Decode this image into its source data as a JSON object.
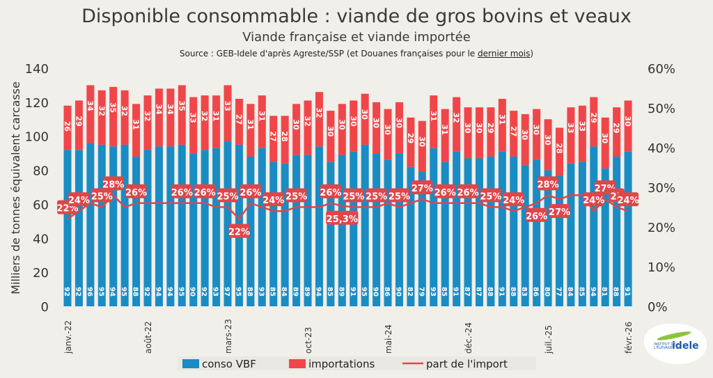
{
  "title": "Disponible consommable : viande de gros bovins et veaux",
  "subtitle": "Viande française et viande importée",
  "source_prefix": "Source : GEB-Idele d'après Agreste/SSP (et Douanes françaises pour le ",
  "source_link": "dernier mois",
  "source_suffix": ")",
  "logo": {
    "line1": "INSTITUT DE",
    "line2": "L'ÉLEVAGE",
    "brand": "idele"
  },
  "chart_data": {
    "type": "bar",
    "stacked": true,
    "title": "Disponible consommable : viande de gros bovins et veaux",
    "ylabel": "Milliers de tonnes équivalent carcasse",
    "ylim": [
      0,
      140
    ],
    "yticks": [
      "0",
      "20",
      "40",
      "60",
      "80",
      "100",
      "120",
      "140"
    ],
    "y2lim": [
      0,
      60
    ],
    "y2ticks": [
      "0%",
      "10%",
      "20%",
      "30%",
      "40%",
      "50%",
      "60%"
    ],
    "grid": false,
    "legend_position": "bottom",
    "colors": {
      "conso": "#1a8cc4",
      "imports": "#f0464a",
      "share": "#e0454a"
    },
    "xtick_labels": [
      {
        "index": 0,
        "label": "janv.-22"
      },
      {
        "index": 7,
        "label": "août-22"
      },
      {
        "index": 14,
        "label": "mars-23"
      },
      {
        "index": 21,
        "label": "oct-23"
      },
      {
        "index": 28,
        "label": "mai-24"
      },
      {
        "index": 35,
        "label": "déc.-24"
      },
      {
        "index": 42,
        "label": "juil.-25"
      },
      {
        "index": 49,
        "label": "févr.-26"
      }
    ],
    "series": [
      {
        "name": "conso VBF",
        "type": "bar",
        "values": [
          92,
          92,
          96,
          95,
          94,
          95,
          88,
          92,
          94,
          94,
          95,
          90,
          92,
          93,
          97,
          95,
          88,
          93,
          85,
          84,
          89,
          89,
          94,
          85,
          89,
          91,
          95,
          90,
          86,
          90,
          82,
          79,
          93,
          85,
          91,
          87,
          87,
          88,
          91,
          88,
          83,
          86,
          80,
          77,
          84,
          85,
          94,
          81,
          88,
          91
        ]
      },
      {
        "name": "importations",
        "type": "bar",
        "values": [
          26,
          29,
          34,
          32,
          35,
          32,
          31,
          32,
          34,
          34,
          35,
          33,
          32,
          31,
          33,
          27,
          31,
          31,
          27,
          28,
          30,
          32,
          32,
          30,
          30,
          30,
          30,
          30,
          30,
          30,
          29,
          30,
          31,
          31,
          32,
          30,
          30,
          29,
          31,
          27,
          30,
          30,
          30,
          28,
          33,
          33,
          29,
          30,
          29,
          30
        ]
      },
      {
        "name": "part de l'import",
        "type": "line",
        "axis": "right",
        "values": [
          22,
          24,
          26,
          25,
          28,
          25,
          26,
          26,
          26,
          26,
          26,
          26,
          26,
          25,
          25,
          22,
          26,
          25,
          24,
          24,
          25,
          25,
          25,
          26,
          25.3,
          25,
          25,
          25,
          26,
          25,
          26,
          27,
          26,
          26,
          26,
          26,
          26,
          25,
          25,
          24,
          25,
          26,
          28,
          27,
          28,
          28,
          24,
          27,
          25,
          24
        ]
      }
    ],
    "share_labels": [
      "22%",
      "24%",
      null,
      "25%",
      "28%",
      null,
      "26%",
      null,
      null,
      null,
      "26%",
      null,
      "26%",
      null,
      "25%",
      "22%",
      "26%",
      null,
      "24%",
      null,
      "25%",
      null,
      null,
      "26%",
      "25,3%",
      "25%",
      null,
      "25%",
      null,
      "25%",
      null,
      "27%",
      null,
      "26%",
      null,
      "26%",
      null,
      "25%",
      null,
      "24%",
      null,
      "26%",
      "28%",
      "27%",
      null,
      null,
      "24%",
      "27%",
      "25",
      "24%"
    ]
  }
}
